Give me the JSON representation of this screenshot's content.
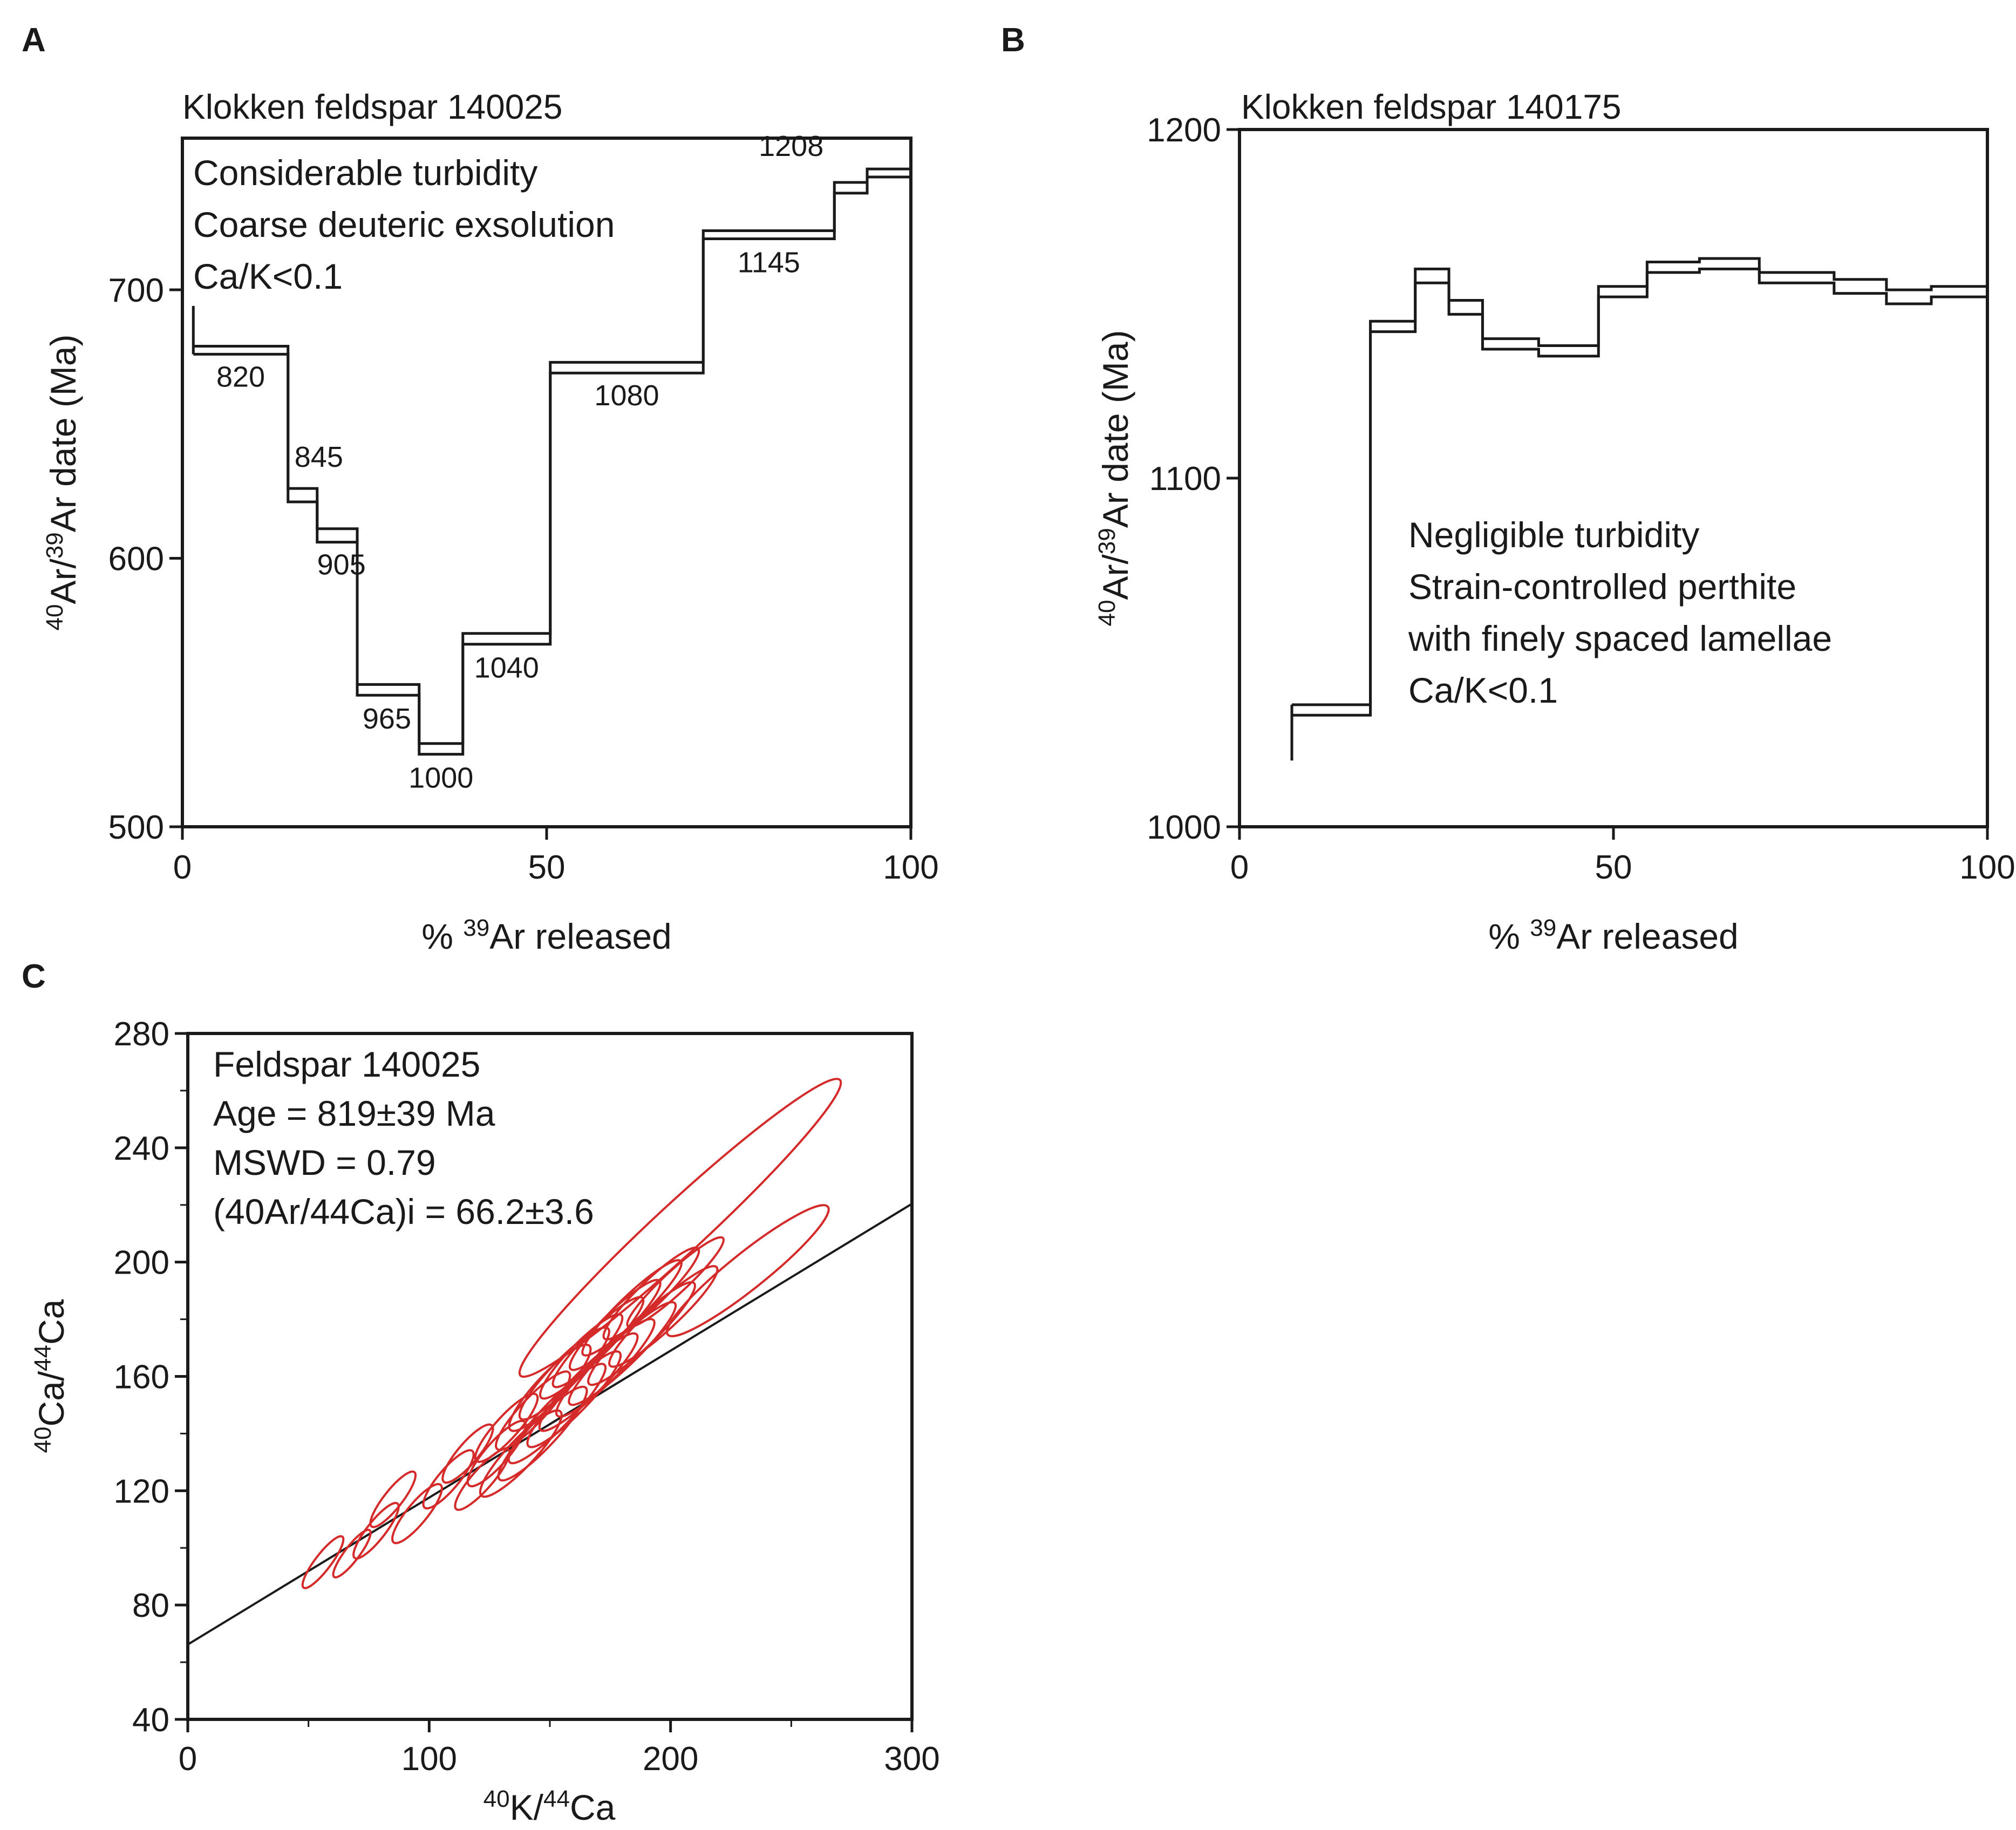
{
  "chart_data": [
    {
      "panel": "A",
      "type": "line",
      "title": "Klokken feldspar 140025",
      "xlabel": "% 39Ar released",
      "ylabel": "40Ar/39Ar date (Ma)",
      "xlim": [
        0,
        100
      ],
      "ylim": [
        500,
        750
      ],
      "xticks": [
        0,
        50,
        100
      ],
      "yticks": [
        500,
        600,
        700
      ],
      "annotation": [
        "Considerable turbidity",
        "Coarse deuteric exsolution",
        "Ca/K<0.1"
      ],
      "steps": [
        {
          "x0": 1.5,
          "x1": 14.5,
          "top": 679,
          "bottom": 676,
          "label": "820"
        },
        {
          "x0": 14.5,
          "x1": 18.5,
          "top": 626,
          "bottom": 621,
          "label": "845"
        },
        {
          "x0": 18.5,
          "x1": 24,
          "top": 611,
          "bottom": 606,
          "label": "905"
        },
        {
          "x0": 24,
          "x1": 32.5,
          "top": 553,
          "bottom": 549,
          "label": "965"
        },
        {
          "x0": 32.5,
          "x1": 38.5,
          "top": 531,
          "bottom": 527,
          "label": "1000"
        },
        {
          "x0": 38.5,
          "x1": 50.5,
          "top": 572,
          "bottom": 568,
          "label": "1040"
        },
        {
          "x0": 50.5,
          "x1": 71.5,
          "top": 673,
          "bottom": 669,
          "label": "1080"
        },
        {
          "x0": 71.5,
          "x1": 89.5,
          "top": 722,
          "bottom": 719,
          "label": "1145"
        },
        {
          "x0": 89.5,
          "x1": 94,
          "top": 740,
          "bottom": 736,
          "label": ""
        },
        {
          "x0": 94,
          "x1": 100,
          "top": 745,
          "bottom": 742,
          "label": "1208"
        }
      ],
      "first_step_tail_top": 694
    },
    {
      "panel": "B",
      "type": "line",
      "title": "Klokken feldspar 140175",
      "xlabel": "% 39Ar released",
      "ylabel": "40Ar/39Ar date (Ma)",
      "xlim": [
        0,
        100
      ],
      "ylim": [
        1000,
        1200
      ],
      "xticks": [
        0,
        50,
        100
      ],
      "yticks": [
        1000,
        1100,
        1200
      ],
      "annotation": [
        "Negligible turbidity",
        "Strain-controlled perthite",
        "with finely spaced lamellae",
        "Ca/K<0.1"
      ],
      "steps": [
        {
          "x0": 7,
          "x1": 17.5,
          "top": 1035,
          "bottom": 1032
        },
        {
          "x0": 17.5,
          "x1": 23.5,
          "top": 1145,
          "bottom": 1142
        },
        {
          "x0": 23.5,
          "x1": 28,
          "top": 1160,
          "bottom": 1156
        },
        {
          "x0": 28,
          "x1": 32.5,
          "top": 1151,
          "bottom": 1147
        },
        {
          "x0": 32.5,
          "x1": 40,
          "top": 1140,
          "bottom": 1137
        },
        {
          "x0": 40,
          "x1": 48,
          "top": 1138,
          "bottom": 1135
        },
        {
          "x0": 48,
          "x1": 54.5,
          "top": 1155,
          "bottom": 1152
        },
        {
          "x0": 54.5,
          "x1": 61.5,
          "top": 1162,
          "bottom": 1159
        },
        {
          "x0": 61.5,
          "x1": 69.5,
          "top": 1163,
          "bottom": 1160
        },
        {
          "x0": 69.5,
          "x1": 79.5,
          "top": 1159,
          "bottom": 1156
        },
        {
          "x0": 79.5,
          "x1": 86.5,
          "top": 1157,
          "bottom": 1153
        },
        {
          "x0": 86.5,
          "x1": 92.5,
          "top": 1154,
          "bottom": 1150
        },
        {
          "x0": 92.5,
          "x1": 100,
          "top": 1155,
          "bottom": 1152
        }
      ],
      "first_step_tail_bottom": 1019
    },
    {
      "panel": "C",
      "type": "scatter",
      "title": "",
      "xlabel": "40K/44Ca",
      "ylabel": "40Ca/44Ca",
      "xlim": [
        0,
        300
      ],
      "ylim": [
        40,
        280
      ],
      "xticks": [
        0,
        100,
        200,
        300
      ],
      "yticks": [
        40,
        80,
        120,
        160,
        200,
        240,
        280
      ],
      "annotation": [
        "Feldspar 140025",
        "Age = 819±39 Ma",
        "MSWD = 0.79",
        "(40Ar/44Ca)i = 66.2±3.6"
      ],
      "isochron": {
        "intercept": 66.2,
        "slope": 0.514
      },
      "ellipses": [
        {
          "cx": 56,
          "cy": 95,
          "rx": 12,
          "ry": 3.5,
          "angle": 48
        },
        {
          "cx": 68,
          "cy": 98,
          "rx": 11,
          "ry": 3.2,
          "angle": 48
        },
        {
          "cx": 78,
          "cy": 106,
          "rx": 13,
          "ry": 4,
          "angle": 47
        },
        {
          "cx": 85,
          "cy": 117,
          "rx": 13,
          "ry": 4,
          "angle": 47
        },
        {
          "cx": 95,
          "cy": 112,
          "rx": 14,
          "ry": 4.5,
          "angle": 46
        },
        {
          "cx": 108,
          "cy": 124,
          "rx": 14,
          "ry": 4.5,
          "angle": 45
        },
        {
          "cx": 116,
          "cy": 133,
          "rx": 14,
          "ry": 4.5,
          "angle": 45
        },
        {
          "cx": 122,
          "cy": 124,
          "rx": 15,
          "ry": 4.5,
          "angle": 44
        },
        {
          "cx": 128,
          "cy": 133,
          "rx": 16,
          "ry": 5,
          "angle": 44
        },
        {
          "cx": 132,
          "cy": 142,
          "rx": 17,
          "ry": 5,
          "angle": 43
        },
        {
          "cx": 138,
          "cy": 133,
          "rx": 22,
          "ry": 6,
          "angle": 42
        },
        {
          "cx": 143,
          "cy": 148,
          "rx": 20,
          "ry": 5.5,
          "angle": 42
        },
        {
          "cx": 147,
          "cy": 140,
          "rx": 24,
          "ry": 6,
          "angle": 42
        },
        {
          "cx": 150,
          "cy": 156,
          "rx": 22,
          "ry": 6,
          "angle": 42
        },
        {
          "cx": 153,
          "cy": 147,
          "rx": 26,
          "ry": 6,
          "angle": 41
        },
        {
          "cx": 156,
          "cy": 161,
          "rx": 24,
          "ry": 6,
          "angle": 41
        },
        {
          "cx": 160,
          "cy": 152,
          "rx": 25,
          "ry": 6,
          "angle": 41
        },
        {
          "cx": 163,
          "cy": 167,
          "rx": 22,
          "ry": 5.5,
          "angle": 41
        },
        {
          "cx": 166,
          "cy": 158,
          "rx": 26,
          "ry": 6,
          "angle": 40
        },
        {
          "cx": 170,
          "cy": 172,
          "rx": 24,
          "ry": 5.5,
          "angle": 40
        },
        {
          "cx": 173,
          "cy": 163,
          "rx": 26,
          "ry": 6,
          "angle": 40
        },
        {
          "cx": 177,
          "cy": 178,
          "rx": 24,
          "ry": 5.5,
          "angle": 40
        },
        {
          "cx": 180,
          "cy": 168,
          "rx": 28,
          "ry": 6,
          "angle": 39
        },
        {
          "cx": 184,
          "cy": 184,
          "rx": 26,
          "ry": 5.5,
          "angle": 39
        },
        {
          "cx": 188,
          "cy": 175,
          "rx": 28,
          "ry": 6,
          "angle": 39
        },
        {
          "cx": 192,
          "cy": 189,
          "rx": 25,
          "ry": 5.5,
          "angle": 39
        },
        {
          "cx": 197,
          "cy": 181,
          "rx": 28,
          "ry": 6,
          "angle": 38
        },
        {
          "cx": 202,
          "cy": 193,
          "rx": 25,
          "ry": 5,
          "angle": 38
        },
        {
          "cx": 232,
          "cy": 197,
          "rx": 40,
          "ry": 8,
          "angle": 34
        },
        {
          "cx": 204,
          "cy": 212,
          "rx": 84,
          "ry": 11,
          "angle": 38
        }
      ]
    }
  ]
}
